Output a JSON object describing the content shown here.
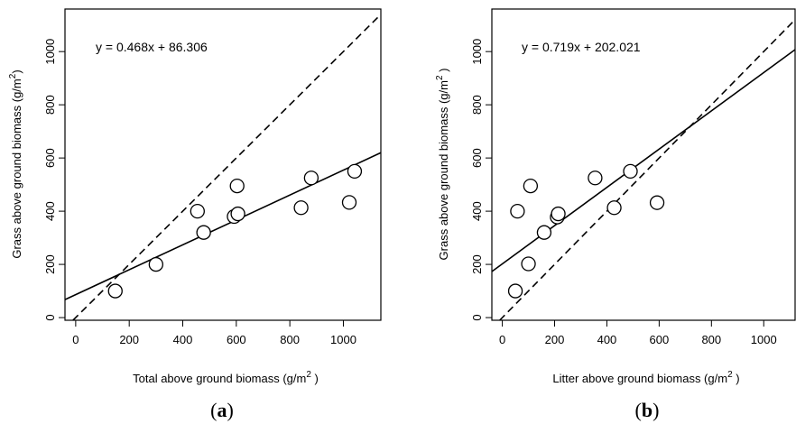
{
  "chart_data": [
    {
      "type": "scatter",
      "panel_label_open": "(",
      "panel_label_letter": "a",
      "panel_label_close": ")",
      "xlabel": "Total above ground biomass (g/m",
      "xlabel_sup": "2",
      "xlabel_end": " )",
      "ylabel": "Grass above ground biomass (g/m",
      "ylabel_sup": "2",
      "ylabel_end": ")",
      "equation": "y = 0.468x + 86.306",
      "xlim": [
        -40,
        1140
      ],
      "ylim": [
        -10,
        1160
      ],
      "x_ticks": [
        0,
        200,
        400,
        600,
        800,
        1000
      ],
      "y_ticks": [
        0,
        200,
        400,
        600,
        800,
        1000
      ],
      "regression": {
        "slope": 0.468,
        "intercept": 86.306
      },
      "identity_line": true,
      "points": [
        {
          "x": 148,
          "y": 100
        },
        {
          "x": 300,
          "y": 200
        },
        {
          "x": 455,
          "y": 400
        },
        {
          "x": 478,
          "y": 320
        },
        {
          "x": 592,
          "y": 380
        },
        {
          "x": 603,
          "y": 495
        },
        {
          "x": 606,
          "y": 390
        },
        {
          "x": 842,
          "y": 413
        },
        {
          "x": 880,
          "y": 525
        },
        {
          "x": 1022,
          "y": 433
        },
        {
          "x": 1042,
          "y": 550
        }
      ]
    },
    {
      "type": "scatter",
      "panel_label_open": "(",
      "panel_label_letter": "b",
      "panel_label_close": ")",
      "xlabel": "Litter above ground biomass (g/m",
      "xlabel_sup": "2",
      "xlabel_end": " )",
      "ylabel": "Grass above ground biomass (g/m",
      "ylabel_sup": "2",
      "ylabel_end": " )",
      "equation": "y = 0.719x + 202.021",
      "xlim": [
        -40,
        1120
      ],
      "ylim": [
        -10,
        1160
      ],
      "x_ticks": [
        0,
        200,
        400,
        600,
        800,
        1000
      ],
      "y_ticks": [
        0,
        200,
        400,
        600,
        800,
        1000
      ],
      "regression": {
        "slope": 0.719,
        "intercept": 202.021
      },
      "identity_line": true,
      "points": [
        {
          "x": 50,
          "y": 100
        },
        {
          "x": 58,
          "y": 400
        },
        {
          "x": 100,
          "y": 202
        },
        {
          "x": 108,
          "y": 495
        },
        {
          "x": 160,
          "y": 320
        },
        {
          "x": 210,
          "y": 378
        },
        {
          "x": 214,
          "y": 390
        },
        {
          "x": 355,
          "y": 525
        },
        {
          "x": 428,
          "y": 413
        },
        {
          "x": 490,
          "y": 550
        },
        {
          "x": 592,
          "y": 432
        }
      ]
    }
  ]
}
